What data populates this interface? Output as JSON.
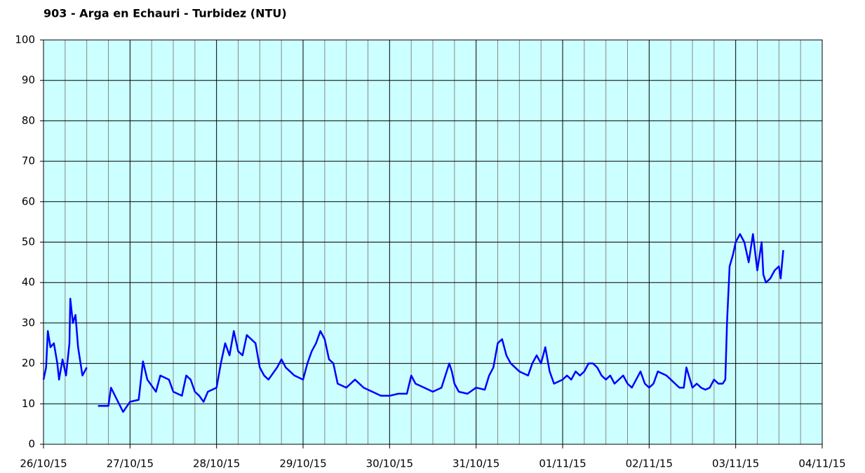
{
  "chart_data": {
    "type": "line",
    "title": "903 - Arga en Echauri - Turbidez (NTU)",
    "xlim": [
      0,
      9
    ],
    "xticks": [
      {
        "value": 0,
        "label": "26/10/15"
      },
      {
        "value": 1,
        "label": "27/10/15"
      },
      {
        "value": 2,
        "label": "28/10/15"
      },
      {
        "value": 3,
        "label": "29/10/15"
      },
      {
        "value": 4,
        "label": "30/10/15"
      },
      {
        "value": 5,
        "label": "31/10/15"
      },
      {
        "value": 6,
        "label": "01/11/15"
      },
      {
        "value": 7,
        "label": "02/11/15"
      },
      {
        "value": 8,
        "label": "03/11/15"
      },
      {
        "value": 9,
        "label": "04/11/15"
      }
    ],
    "xminor_ticks": [
      0.25,
      0.5,
      0.75,
      1.25,
      1.5,
      1.75,
      2.25,
      2.5,
      2.75,
      3.25,
      3.5,
      3.75,
      4.25,
      4.5,
      4.75,
      5.25,
      5.5,
      5.75,
      6.25,
      6.5,
      6.75,
      7.25,
      7.5,
      7.75,
      8.25,
      8.5,
      8.75
    ],
    "ylim": [
      0,
      100
    ],
    "yticks": [
      0,
      10,
      20,
      30,
      40,
      50,
      60,
      70,
      80,
      90,
      100
    ],
    "grid": true,
    "background": "#ccffff",
    "x": [
      0,
      0.03,
      0.05,
      0.08,
      0.12,
      0.16,
      0.18,
      0.22,
      0.26,
      0.3,
      0.31,
      0.34,
      0.37,
      0.4,
      0.45,
      0.5,
      0.56,
      0.63,
      0.75,
      0.78,
      0.85,
      0.92,
      1.0,
      1.1,
      1.15,
      1.2,
      1.3,
      1.35,
      1.45,
      1.5,
      1.6,
      1.65,
      1.7,
      1.75,
      1.8,
      1.85,
      1.9,
      2.0,
      2.05,
      2.1,
      2.15,
      2.2,
      2.25,
      2.3,
      2.35,
      2.45,
      2.5,
      2.55,
      2.6,
      2.7,
      2.75,
      2.8,
      2.9,
      3.0,
      3.05,
      3.1,
      3.15,
      3.2,
      3.25,
      3.3,
      3.35,
      3.4,
      3.5,
      3.55,
      3.6,
      3.7,
      3.8,
      3.9,
      4.0,
      4.1,
      4.2,
      4.25,
      4.3,
      4.4,
      4.5,
      4.6,
      4.69,
      4.72,
      4.75,
      4.8,
      4.9,
      5.0,
      5.1,
      5.15,
      5.2,
      5.25,
      5.3,
      5.35,
      5.4,
      5.5,
      5.6,
      5.65,
      5.7,
      5.75,
      5.8,
      5.85,
      5.9,
      6.0,
      6.05,
      6.1,
      6.15,
      6.2,
      6.25,
      6.3,
      6.35,
      6.4,
      6.45,
      6.5,
      6.55,
      6.6,
      6.7,
      6.75,
      6.8,
      6.9,
      6.95,
      7.0,
      7.05,
      7.1,
      7.2,
      7.25,
      7.3,
      7.35,
      7.4,
      7.43,
      7.5,
      7.55,
      7.6,
      7.65,
      7.7,
      7.75,
      7.8,
      7.85,
      7.88,
      7.9,
      7.93,
      7.97,
      8.0,
      8.05,
      8.1,
      8.15,
      8.2,
      8.25,
      8.3,
      8.32,
      8.35,
      8.4,
      8.45,
      8.5,
      8.52,
      8.55
    ],
    "series": [
      {
        "name": "Turbidez",
        "color": "#0000ff",
        "values": [
          16,
          19,
          28,
          24,
          25,
          20,
          16,
          21,
          17,
          25,
          36,
          30,
          32,
          24,
          17,
          19,
          null,
          9.5,
          9.5,
          14,
          11,
          8,
          10.5,
          11,
          20.5,
          16,
          13,
          17,
          16,
          13,
          12,
          17,
          16,
          13,
          12,
          10.5,
          13,
          14,
          20,
          25,
          22,
          28,
          23,
          22,
          27,
          25,
          19,
          17,
          16,
          19,
          21,
          19,
          17,
          16,
          20,
          23,
          25,
          28,
          26,
          21,
          20,
          15,
          14,
          15,
          16,
          14,
          13,
          12,
          12,
          12.5,
          12.5,
          17,
          15,
          14,
          13,
          14,
          20,
          18,
          15,
          13,
          12.5,
          14,
          13.5,
          17,
          19,
          25,
          26,
          22,
          20,
          18,
          17,
          20,
          22,
          20,
          24,
          18,
          15,
          16,
          17,
          16,
          18,
          17,
          18,
          20,
          20,
          19,
          17,
          16,
          17,
          15,
          17,
          15,
          14,
          18,
          15,
          14,
          15,
          18,
          17,
          16,
          15,
          14,
          14,
          19,
          14,
          15,
          14,
          13.5,
          14,
          16,
          15,
          15,
          16,
          30,
          44,
          47,
          50,
          52,
          50,
          45,
          52,
          43,
          50,
          42,
          40,
          41,
          43,
          44,
          41,
          48
        ]
      }
    ]
  }
}
